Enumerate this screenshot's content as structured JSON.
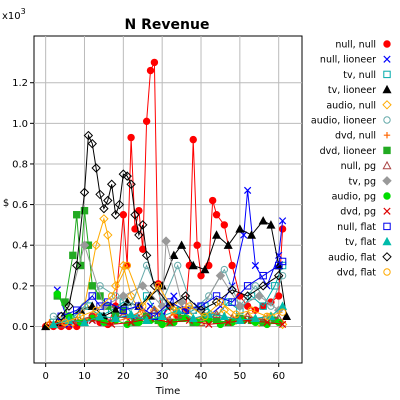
{
  "chart_data": {
    "type": "line",
    "title": "N Revenue",
    "xlabel": "Time",
    "ylabel": "$",
    "multiplier": "x10",
    "multiplier_exp": "3",
    "xlim": [
      -3,
      66
    ],
    "ylim": [
      -0.18,
      1.43
    ],
    "xticks": [
      0,
      10,
      20,
      30,
      40,
      50,
      60
    ],
    "yticks": [
      0.0,
      0.2,
      0.4,
      0.6,
      0.8,
      1.0,
      1.2
    ],
    "ytick_labels": [
      "0.0",
      "0.2",
      "0.4",
      "0.6",
      "0.8",
      "1.0",
      "1.2"
    ],
    "grid": true,
    "legend_position": "right",
    "series": [
      {
        "name": "null, null",
        "color": "#ff0000",
        "marker": "circle",
        "x": [
          0,
          2,
          4,
          6,
          8,
          10,
          12,
          14,
          16,
          18,
          20,
          21,
          22,
          23,
          24,
          25,
          26,
          27,
          28,
          29,
          30,
          32,
          34,
          36,
          37,
          38,
          39,
          40,
          42,
          43,
          44,
          46,
          48,
          50,
          52,
          54,
          56,
          58,
          60,
          61
        ],
        "y": [
          0,
          0,
          0,
          0,
          0,
          0.02,
          0.05,
          0.02,
          0.01,
          0.1,
          0.55,
          0.3,
          0.93,
          0.48,
          0.57,
          0.38,
          1.01,
          1.26,
          1.3,
          0.21,
          0.05,
          0.1,
          0.05,
          0.08,
          0.3,
          0.92,
          0.4,
          0.25,
          0.3,
          0.62,
          0.55,
          0.5,
          0.3,
          0.15,
          0.1,
          0.08,
          0.1,
          0.12,
          0.15,
          0.48
        ]
      },
      {
        "name": "null, lioneer",
        "color": "#0000ff",
        "marker": "x",
        "x": [
          3,
          6,
          9,
          12,
          15,
          18,
          21,
          24,
          27,
          30,
          33,
          36,
          39,
          42,
          45,
          48,
          51,
          52,
          54,
          57,
          60,
          61
        ],
        "y": [
          0.18,
          0.01,
          0.02,
          0.03,
          0.02,
          0.04,
          0.05,
          0.03,
          0.1,
          0.05,
          0.15,
          0.08,
          0.1,
          0.05,
          0.1,
          0.2,
          0.45,
          0.67,
          0.3,
          0.2,
          0.35,
          0.52
        ]
      },
      {
        "name": "tv, null",
        "color": "#00aaaa",
        "marker": "square",
        "x": [
          2,
          5,
          8,
          11,
          14,
          17,
          20,
          23,
          26,
          29,
          32,
          35,
          38,
          41,
          44,
          47,
          50,
          53,
          56,
          59,
          61
        ],
        "y": [
          0.02,
          0.04,
          0.06,
          0.1,
          0.05,
          0.08,
          0.12,
          0.04,
          0.15,
          0.06,
          0.1,
          0.05,
          0.08,
          0.1,
          0.05,
          0.12,
          0.08,
          0.15,
          0.1,
          0.2,
          0.3
        ]
      },
      {
        "name": "tv, lioneer",
        "color": "#000000",
        "marker": "triangle",
        "x": [
          0,
          3,
          6,
          9,
          12,
          15,
          18,
          21,
          24,
          27,
          30,
          33,
          35,
          38,
          41,
          44,
          47,
          50,
          53,
          56,
          58,
          60,
          62
        ],
        "y": [
          0,
          0.02,
          0.05,
          0.08,
          0.1,
          0.05,
          0.08,
          0.12,
          0.1,
          0.15,
          0.2,
          0.35,
          0.4,
          0.3,
          0.28,
          0.45,
          0.4,
          0.48,
          0.45,
          0.52,
          0.5,
          0.3,
          0.05
        ]
      },
      {
        "name": "audio, null",
        "color": "#ffaa00",
        "marker": "diamond",
        "x": [
          1,
          4,
          7,
          10,
          13,
          15,
          16,
          18,
          20,
          22,
          25,
          28,
          31,
          34,
          37,
          40,
          43,
          46,
          49,
          52,
          55,
          58,
          61
        ],
        "y": [
          0.01,
          0.03,
          0.02,
          0.1,
          0.4,
          0.53,
          0.45,
          0.2,
          0.3,
          0.15,
          0.05,
          0.08,
          0.02,
          0.1,
          0.05,
          0.02,
          0.05,
          0.08,
          0.03,
          0.05,
          0.02,
          0.05,
          0.01
        ]
      },
      {
        "name": "audio, lioneer",
        "color": "#66aaaa",
        "marker": "circle-open",
        "x": [
          2,
          6,
          10,
          14,
          18,
          22,
          26,
          30,
          34,
          38,
          42,
          46,
          50,
          54,
          58,
          61
        ],
        "y": [
          0.05,
          0.02,
          0.1,
          0.2,
          0.15,
          0.1,
          0.3,
          0.12,
          0.3,
          0.08,
          0.15,
          0.28,
          0.1,
          0.2,
          0.1,
          0.25
        ]
      },
      {
        "name": "dvd, null",
        "color": "#ff6600",
        "marker": "plus",
        "x": [
          1,
          5,
          9,
          13,
          17,
          21,
          25,
          29,
          33,
          37,
          41,
          45,
          49,
          53,
          57,
          61
        ],
        "y": [
          0.02,
          0.01,
          0.03,
          0.05,
          0.02,
          0.04,
          0.08,
          0.02,
          0.06,
          0.03,
          0.05,
          0.02,
          0.04,
          0.03,
          0.05,
          0.02
        ]
      },
      {
        "name": "dvd, lioneer",
        "color": "#22aa22",
        "marker": "square-filled",
        "x": [
          3,
          5,
          7,
          8,
          9,
          10,
          11,
          12,
          14,
          16,
          18,
          20,
          23,
          26,
          29,
          32,
          35,
          38,
          41,
          44,
          47,
          50,
          53,
          56,
          59
        ],
        "y": [
          0.15,
          0.12,
          0.35,
          0.55,
          0.3,
          0.57,
          0.4,
          0.2,
          0.15,
          0.1,
          0.05,
          0.08,
          0.02,
          0.05,
          0.03,
          0.02,
          0.04,
          0.02,
          0.05,
          0.03,
          0.02,
          0.04,
          0.03,
          0.02,
          0.03
        ]
      },
      {
        "name": "null, pg",
        "color": "#aa4444",
        "marker": "triangle-open",
        "x": [
          4,
          8,
          12,
          16,
          20,
          24,
          28,
          32,
          36,
          40,
          44,
          48,
          52,
          56,
          60
        ],
        "y": [
          0.01,
          0.03,
          0.05,
          0.02,
          0.06,
          0.04,
          0.08,
          0.03,
          0.05,
          0.02,
          0.06,
          0.04,
          0.05,
          0.03,
          0.04
        ]
      },
      {
        "name": "tv, pg",
        "color": "#999999",
        "marker": "diamond-filled",
        "x": [
          5,
          10,
          15,
          20,
          25,
          30,
          31,
          35,
          40,
          45,
          50,
          55,
          60
        ],
        "y": [
          0.05,
          0.4,
          0.1,
          0.15,
          0.2,
          0.1,
          0.42,
          0.12,
          0.08,
          0.25,
          0.1,
          0.15,
          0.08
        ]
      },
      {
        "name": "audio, pg",
        "color": "#00dd00",
        "marker": "circle",
        "x": [
          3,
          6,
          9,
          12,
          15,
          18,
          21,
          24,
          27,
          30,
          33,
          36,
          39,
          42,
          45,
          48,
          51,
          54,
          57,
          60
        ],
        "y": [
          0.16,
          0.05,
          0.02,
          0.04,
          0.02,
          0.03,
          0.01,
          0.02,
          0.03,
          0.01,
          0.02,
          0.04,
          0.02,
          0.03,
          0.01,
          0.02,
          0.03,
          0.02,
          0.01,
          0.02
        ]
      },
      {
        "name": "dvd, pg",
        "color": "#dd0000",
        "marker": "x",
        "x": [
          2,
          7,
          12,
          17,
          22,
          27,
          32,
          37,
          42,
          47,
          52,
          57,
          61
        ],
        "y": [
          0.01,
          0.02,
          0.03,
          0.01,
          0.02,
          0.04,
          0.02,
          0.03,
          0.01,
          0.02,
          0.03,
          0.02,
          0.01
        ]
      },
      {
        "name": "null, flat",
        "color": "#0000ee",
        "marker": "square-open",
        "x": [
          4,
          8,
          12,
          14,
          16,
          20,
          24,
          28,
          32,
          36,
          40,
          44,
          48,
          52,
          56,
          60,
          61
        ],
        "y": [
          0.05,
          0.08,
          0.15,
          0.1,
          0.12,
          0.08,
          0.1,
          0.05,
          0.12,
          0.08,
          0.1,
          0.15,
          0.12,
          0.2,
          0.25,
          0.3,
          0.32
        ]
      },
      {
        "name": "tv, flat",
        "color": "#00bbaa",
        "marker": "triangle",
        "x": [
          2,
          6,
          10,
          14,
          18,
          22,
          26,
          30,
          34,
          38,
          42,
          46,
          50,
          54,
          58,
          61
        ],
        "y": [
          0.01,
          0.03,
          0.02,
          0.05,
          0.04,
          0.06,
          0.03,
          0.05,
          0.08,
          0.04,
          0.06,
          0.05,
          0.03,
          0.04,
          0.05,
          0.1
        ]
      },
      {
        "name": "audio, flat",
        "color": "#000000",
        "marker": "diamond-open",
        "x": [
          4,
          6,
          8,
          10,
          11,
          12,
          13,
          14,
          15,
          16,
          17,
          18,
          19,
          20,
          21,
          22,
          23,
          24,
          25,
          26,
          28,
          32,
          36,
          40,
          44,
          48,
          52,
          56,
          60
        ],
        "y": [
          0.05,
          0.1,
          0.3,
          0.66,
          0.94,
          0.9,
          0.78,
          0.65,
          0.58,
          0.62,
          0.7,
          0.55,
          0.6,
          0.75,
          0.74,
          0.7,
          0.55,
          0.45,
          0.5,
          0.35,
          0.2,
          0.1,
          0.15,
          0.08,
          0.12,
          0.18,
          0.15,
          0.2,
          0.25
        ]
      },
      {
        "name": "dvd, flat",
        "color": "#ffaa00",
        "marker": "circle-open",
        "x": [
          5,
          9,
          13,
          17,
          21,
          25,
          29,
          33,
          37,
          41,
          45,
          49,
          53,
          57,
          61
        ],
        "y": [
          0.02,
          0.05,
          0.08,
          0.15,
          0.3,
          0.1,
          0.2,
          0.08,
          0.1,
          0.05,
          0.12,
          0.06,
          0.08,
          0.05,
          0.07
        ]
      }
    ]
  }
}
